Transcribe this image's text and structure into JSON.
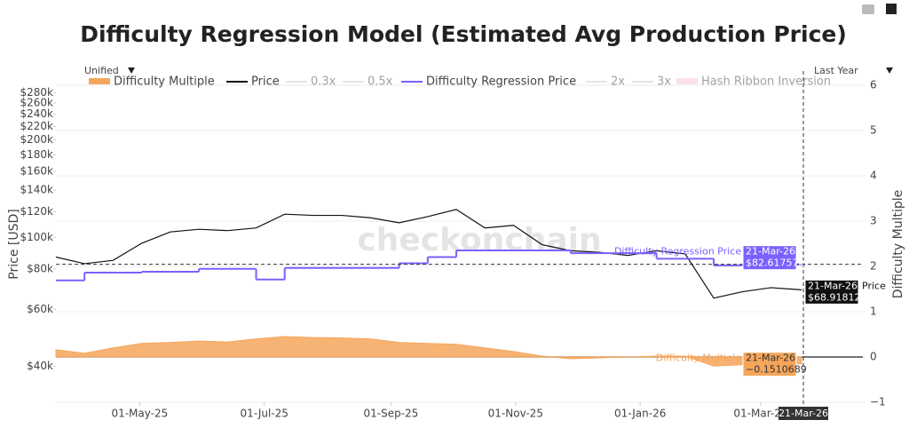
{
  "chart_data": {
    "type": "line",
    "title": "Difficulty Regression Model (Estimated Avg Production Price)",
    "watermark": "checkonchain",
    "hovermode": "Unified",
    "range_selector": "Last Year",
    "y_label": "Price [USD]",
    "y2_label": "Difficulty Multiple",
    "x_hover_label": "21-Mar-26",
    "log_y": true,
    "grid": "y2",
    "x": [
      "2025-03-21",
      "2025-04-04",
      "2025-04-18",
      "2025-05-02",
      "2025-05-16",
      "2025-05-30",
      "2025-06-13",
      "2025-06-27",
      "2025-07-11",
      "2025-07-25",
      "2025-08-08",
      "2025-08-22",
      "2025-09-05",
      "2025-09-19",
      "2025-10-03",
      "2025-10-17",
      "2025-10-31",
      "2025-11-14",
      "2025-11-28",
      "2025-12-12",
      "2025-12-26",
      "2026-01-09",
      "2026-01-23",
      "2026-02-06",
      "2026-02-20",
      "2026-03-06",
      "2026-03-21"
    ],
    "xlim": [
      "2025-03-21",
      "2026-03-21"
    ],
    "xticks": [
      {
        "value": "2025-05-01",
        "label": "01-May-25"
      },
      {
        "value": "2025-07-01",
        "label": "01-Jul-25"
      },
      {
        "value": "2025-09-01",
        "label": "01-Sep-25"
      },
      {
        "value": "2025-11-01",
        "label": "01-Nov-25"
      },
      {
        "value": "2026-01-01",
        "label": "01-Jan-26"
      },
      {
        "value": "2026-03-01",
        "label": "01-Mar-26"
      }
    ],
    "ylim": [
      31000,
      295000
    ],
    "yticks": [
      {
        "value": 40000,
        "label": "$40k"
      },
      {
        "value": 60000,
        "label": "$60k"
      },
      {
        "value": 80000,
        "label": "$80k"
      },
      {
        "value": 100000,
        "label": "$100k"
      },
      {
        "value": 120000,
        "label": "$120k"
      },
      {
        "value": 140000,
        "label": "$140k"
      },
      {
        "value": 160000,
        "label": "$160k"
      },
      {
        "value": 180000,
        "label": "$180k"
      },
      {
        "value": 200000,
        "label": "$200k"
      },
      {
        "value": 220000,
        "label": "$220k"
      },
      {
        "value": 240000,
        "label": "$240k"
      },
      {
        "value": 260000,
        "label": "$260k"
      },
      {
        "value": 280000,
        "label": "$280k"
      }
    ],
    "y2lim": [
      -1,
      6
    ],
    "y2ticks": [
      {
        "value": -1,
        "label": "−1"
      },
      0,
      1,
      2,
      3,
      4,
      5,
      6
    ],
    "series": [
      {
        "name": "Difficulty Multiple",
        "color": "#f5a65b",
        "mode": "area",
        "axis": "y2",
        "visible": true,
        "values": [
          0.16,
          0.08,
          0.2,
          0.3,
          0.32,
          0.35,
          0.33,
          0.4,
          0.45,
          0.43,
          0.42,
          0.4,
          0.32,
          0.3,
          0.28,
          0.2,
          0.12,
          0.02,
          -0.04,
          -0.02,
          0.0,
          0.02,
          0.02,
          -0.2,
          -0.17,
          -0.15,
          -0.1510689
        ],
        "value_labels": [
          null,
          null,
          null,
          null,
          null,
          null,
          null,
          null,
          null,
          null,
          null,
          null,
          null,
          null,
          null,
          null,
          null,
          null,
          null,
          null,
          null,
          null,
          null,
          null,
          null,
          null,
          "−0.1510689"
        ]
      },
      {
        "name": "Price",
        "color": "#111111",
        "mode": "line",
        "visible": true,
        "values": [
          87000,
          83000,
          85000,
          96000,
          104000,
          106000,
          105000,
          107000,
          118000,
          117000,
          117000,
          115000,
          111000,
          116000,
          122000,
          107000,
          109000,
          95000,
          91000,
          90000,
          88000,
          91000,
          89000,
          65000,
          68000,
          70000,
          68918.12
        ],
        "value_labels": [
          null,
          null,
          null,
          null,
          null,
          null,
          null,
          null,
          null,
          null,
          null,
          null,
          null,
          null,
          null,
          null,
          null,
          null,
          null,
          null,
          null,
          null,
          null,
          null,
          null,
          null,
          "$68.91812k"
        ]
      },
      {
        "name": "0.3x",
        "color": "#cccccc",
        "mode": "line",
        "visible": false
      },
      {
        "name": "0.5x",
        "color": "#cccccc",
        "mode": "line",
        "visible": false
      },
      {
        "name": "Difficulty Regression Price",
        "color": "#7b61ff",
        "mode": "step",
        "visible": true,
        "values": [
          73700,
          77900,
          77900,
          78400,
          78400,
          80000,
          80000,
          74200,
          80500,
          80500,
          80500,
          80500,
          83200,
          87000,
          91200,
          91200,
          91200,
          91200,
          89400,
          89400,
          89400,
          86000,
          86000,
          82000,
          82000,
          82600,
          82617.57
        ],
        "value_labels": [
          null,
          null,
          null,
          null,
          null,
          null,
          null,
          null,
          null,
          null,
          null,
          null,
          null,
          null,
          null,
          null,
          null,
          null,
          null,
          null,
          null,
          null,
          null,
          null,
          null,
          null,
          "$82.61757k"
        ]
      },
      {
        "name": "2x",
        "color": "#cccccc",
        "mode": "line",
        "visible": false
      },
      {
        "name": "3x",
        "color": "#cccccc",
        "mode": "line",
        "visible": false
      },
      {
        "name": "Hash Ribbon Inversion",
        "color": "#f6c4cf",
        "mode": "fill",
        "visible": false
      }
    ]
  }
}
